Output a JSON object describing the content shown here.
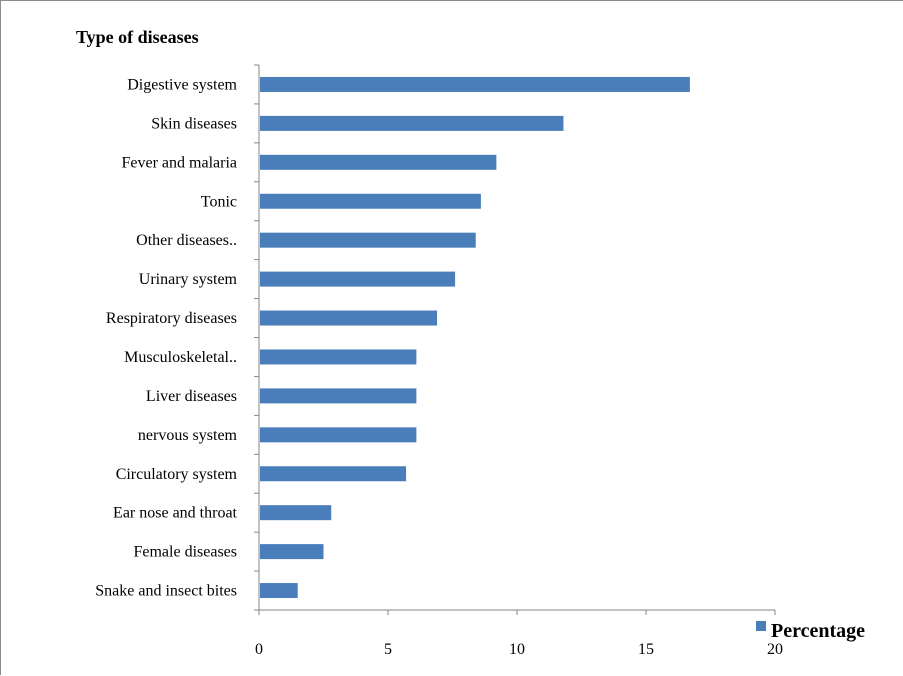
{
  "chart_data": {
    "type": "bar",
    "orientation": "horizontal",
    "title": "Type of diseases",
    "categories": [
      "Digestive system",
      "Skin diseases",
      "Fever and malaria",
      "Tonic",
      "Other diseases..",
      "Urinary system",
      "Respiratory  diseases",
      "Musculoskeletal..",
      "Liver diseases",
      "nervous system",
      "Circulatory system",
      "Ear nose and throat",
      "Female diseases",
      "Snake and insect bites"
    ],
    "series": [
      {
        "name": "Percentage",
        "color": "#4a7ebb",
        "values": [
          16.7,
          11.8,
          9.2,
          8.6,
          8.4,
          7.6,
          6.9,
          6.1,
          6.1,
          6.1,
          5.7,
          2.8,
          2.5,
          1.5
        ]
      }
    ],
    "xlim": [
      0,
      20
    ],
    "xticks": [
      "0",
      "5",
      "10",
      "15",
      "20"
    ],
    "xlabel": "",
    "ylabel": "",
    "grid": false,
    "legend_position": "bottom-right",
    "axis_color": "#868686"
  }
}
